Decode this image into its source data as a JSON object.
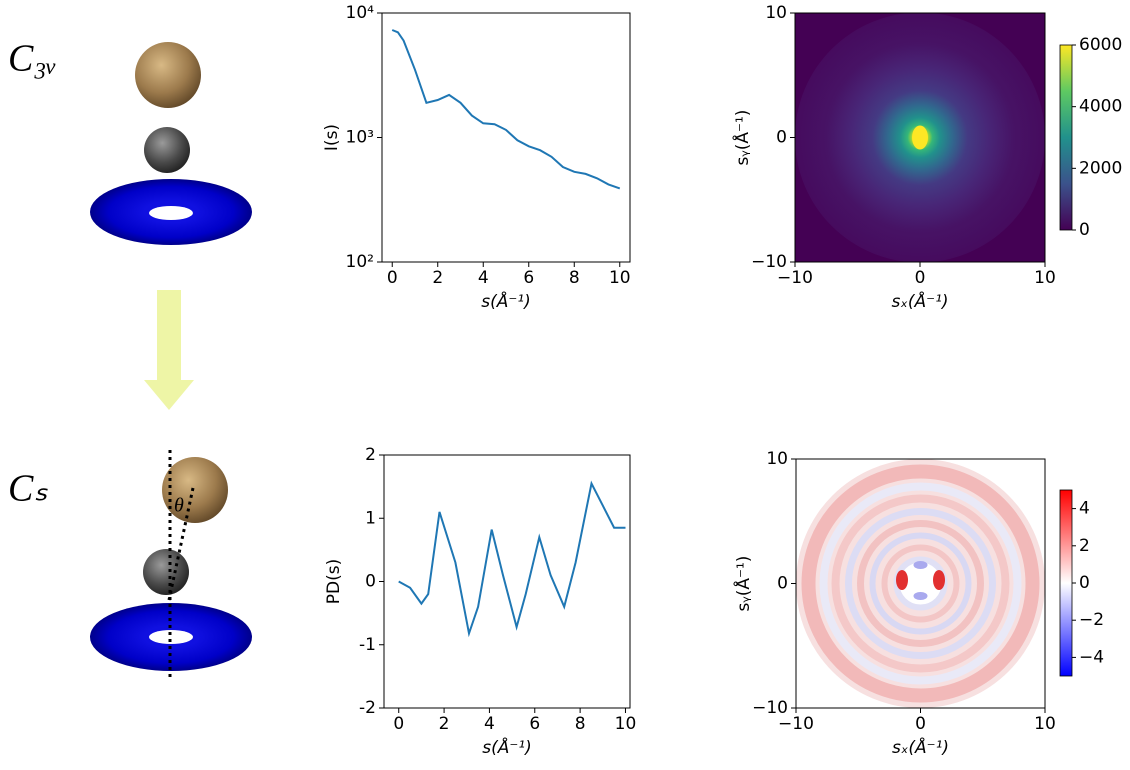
{
  "panel_labels": [
    "C₃ᵥ",
    "Cₛ"
  ],
  "angle_label": "θ",
  "chart_data": [
    {
      "type": "line",
      "ylabel": "I(s)",
      "xlabel": "s(Å⁻¹)",
      "color": "#1f77b4",
      "yscale": "log",
      "x": [
        0,
        0.25,
        0.5,
        1,
        1.5,
        2,
        2.5,
        3,
        3.5,
        4,
        4.5,
        5,
        5.5,
        6,
        6.5,
        7,
        7.5,
        8,
        8.5,
        9,
        9.5,
        10
      ],
      "values": [
        7300,
        7000,
        6000,
        3500,
        1900,
        2000,
        2200,
        1900,
        1500,
        1300,
        1280,
        1150,
        950,
        850,
        790,
        700,
        580,
        530,
        510,
        470,
        420,
        390
      ],
      "xlim": [
        -0.45,
        10.45
      ],
      "xticks": [
        0,
        2,
        4,
        6,
        8,
        10
      ],
      "ylim": [
        100,
        10000
      ],
      "yticks": [
        {
          "value": 100,
          "label": "10²"
        },
        {
          "value": 1000,
          "label": "10³"
        },
        {
          "value": 10000,
          "label": "10⁴"
        }
      ]
    },
    {
      "type": "image",
      "xlabel": "sₓ(Å⁻¹)",
      "ylabel": "sᵧ(Å⁻¹)",
      "colormap": "viridis",
      "xlim": [
        -10,
        10
      ],
      "ylim": [
        -10,
        10
      ],
      "xticks": [
        {
          "value": -10,
          "label": "−10"
        },
        0,
        10
      ],
      "yticks": [
        {
          "value": -10,
          "label": "−10"
        },
        0,
        10
      ],
      "clim": [
        0,
        6000
      ],
      "cticks": [
        0,
        2000,
        4000,
        6000
      ]
    },
    {
      "type": "line",
      "ylabel": "PD(s)",
      "xlabel": "s(Å⁻¹)",
      "color": "#1f77b4",
      "x": [
        0,
        0.5,
        1,
        1.3,
        1.8,
        2.5,
        3.1,
        3.5,
        4.1,
        4.6,
        5.2,
        5.6,
        6.2,
        6.7,
        7.3,
        7.8,
        8.5,
        9,
        9.5,
        10
      ],
      "values": [
        0,
        -0.1,
        -0.35,
        -0.2,
        1.1,
        0.3,
        -0.82,
        -0.4,
        0.82,
        0.1,
        -0.72,
        -0.2,
        0.7,
        0.1,
        -0.4,
        0.3,
        1.55,
        1.2,
        0.85,
        0.85
      ],
      "xlim": [
        -0.65,
        10.2
      ],
      "xticks": [
        0,
        2,
        4,
        6,
        8,
        10
      ],
      "ylim": [
        -2,
        2
      ],
      "yticks": [
        {
          "value": -2,
          "label": "-2"
        },
        {
          "value": -1,
          "label": "-1"
        },
        0,
        1,
        2
      ]
    },
    {
      "type": "image",
      "xlabel": "sₓ(Å⁻¹)",
      "ylabel": "sᵧ(Å⁻¹)",
      "colormap": "bwr",
      "xlim": [
        -10,
        10
      ],
      "ylim": [
        -10,
        10
      ],
      "xticks": [
        {
          "value": -10,
          "label": "−10"
        },
        0,
        10
      ],
      "yticks": [
        {
          "value": -10,
          "label": "−10"
        },
        0,
        10
      ],
      "clim": [
        -5,
        5
      ],
      "cticks": [
        {
          "value": -4,
          "label": "−4"
        },
        {
          "value": -2,
          "label": "−2"
        },
        0,
        2,
        4
      ]
    }
  ]
}
